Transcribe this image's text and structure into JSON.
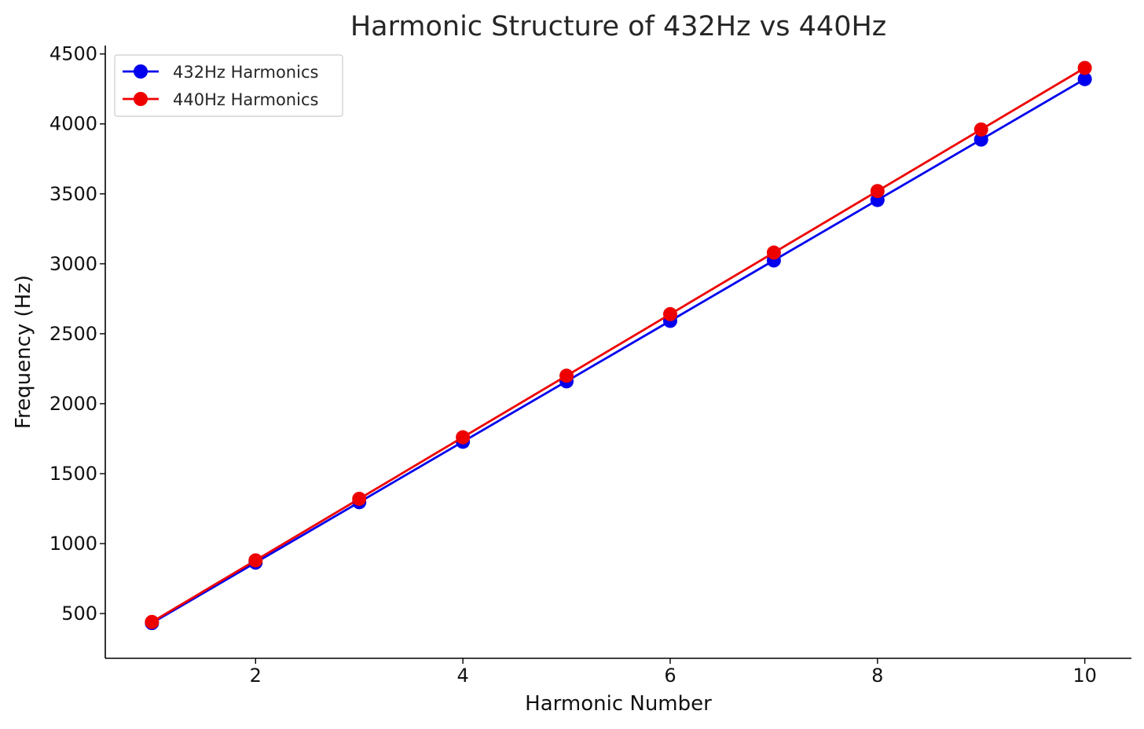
{
  "chart_data": {
    "type": "line",
    "title": "Harmonic Structure of 432Hz vs 440Hz",
    "xlabel": "Harmonic Number",
    "ylabel": "Frequency (Hz)",
    "x": [
      1,
      2,
      3,
      4,
      5,
      6,
      7,
      8,
      9,
      10
    ],
    "xlim": [
      0.55,
      10.45
    ],
    "ylim": [
      180,
      4560
    ],
    "xticks": [
      2,
      4,
      6,
      8,
      10
    ],
    "xtick_labels": [
      "2",
      "4",
      "6",
      "8",
      "10"
    ],
    "yticks": [
      500,
      1000,
      1500,
      2000,
      2500,
      3000,
      3500,
      4000,
      4500
    ],
    "ytick_labels": [
      "500",
      "1000",
      "1500",
      "2000",
      "2500",
      "3000",
      "3500",
      "4000",
      "4500"
    ],
    "grid": false,
    "legend_position": "top-left",
    "series": [
      {
        "name": "432Hz Harmonics",
        "color": "#0000ee",
        "marker": "circle",
        "values": [
          432,
          864,
          1296,
          1728,
          2160,
          2592,
          3024,
          3456,
          3888,
          4320
        ]
      },
      {
        "name": "440Hz Harmonics",
        "color": "#ee0000",
        "marker": "circle",
        "values": [
          440,
          880,
          1320,
          1760,
          2200,
          2640,
          3080,
          3520,
          3960,
          4400
        ]
      }
    ]
  }
}
